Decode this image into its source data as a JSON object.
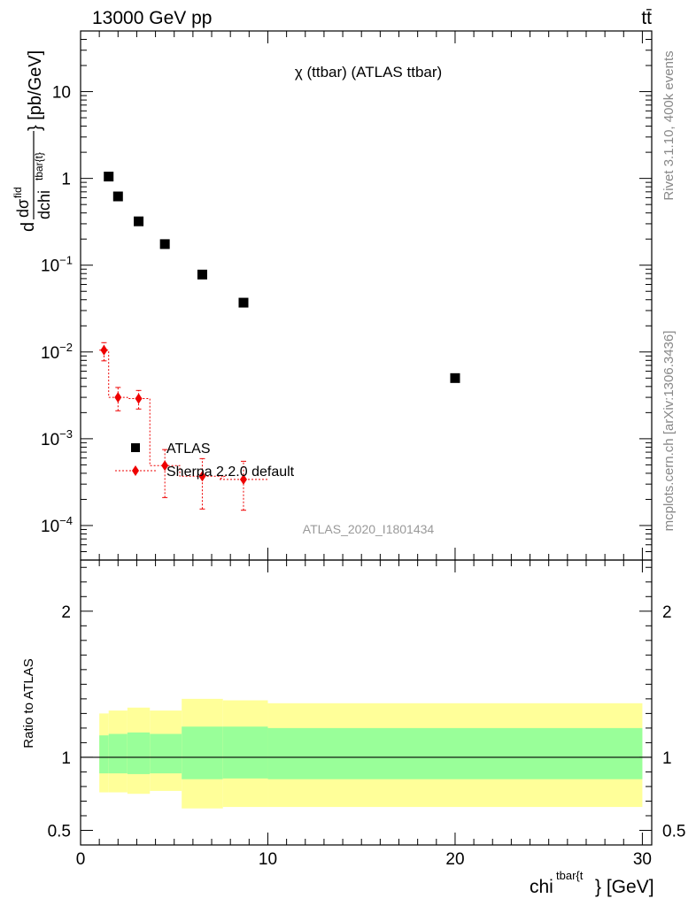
{
  "header": {
    "left": "13000 GeV pp",
    "right": "tt̄"
  },
  "side_labels": {
    "rivet": "Rivet 3.1.10,  400k events",
    "mcplots": "mcplots.cern.ch [arXiv:1306.3436]"
  },
  "colors": {
    "atlas": "#000000",
    "sherpa": "#ee0000",
    "band_inner": "#99ff99",
    "band_outer": "#ffff99"
  },
  "chart_data": {
    "type": "scatter",
    "title": "χ (ttbar) (ATLAS ttbar)",
    "watermark": "ATLAS_2020_I1801434",
    "xlabel": {
      "base": "chi",
      "sup": "tbar{t",
      "suffix": "} [GeV]"
    },
    "ylabel": {
      "d": "d",
      "num_base": "dσ",
      "num_sup": "fid",
      "den_base": "dchi",
      "den_sup": "tbar{t}",
      "suffix": "} [pb/GeV]"
    },
    "xlim": [
      0,
      30.5
    ],
    "ylim": [
      4e-05,
      50
    ],
    "yscale": "log",
    "x_ticks": [
      {
        "value": 0,
        "label": "0"
      },
      {
        "value": 10,
        "label": "10"
      },
      {
        "value": 20,
        "label": "20"
      },
      {
        "value": 30,
        "label": "30"
      }
    ],
    "y_ticks": [
      {
        "value": 10,
        "base": "10",
        "exp": ""
      },
      {
        "value": 1,
        "base": "1",
        "exp": ""
      },
      {
        "value": 0.1,
        "base": "10",
        "exp": "−1"
      },
      {
        "value": 0.01,
        "base": "10",
        "exp": "−2"
      },
      {
        "value": 0.001,
        "base": "10",
        "exp": "−3"
      },
      {
        "value": 0.0001,
        "base": "10",
        "exp": "−4"
      }
    ],
    "legend": {
      "position": "center-left",
      "entries": [
        {
          "label": "ATLAS"
        },
        {
          "label": "Sherpa 2.2.0 default"
        }
      ]
    },
    "series": [
      {
        "name": "ATLAS",
        "marker": "square",
        "x": [
          1.5,
          2.0,
          3.1,
          4.5,
          6.5,
          8.7,
          20.0
        ],
        "y": [
          1.05,
          0.62,
          0.32,
          0.175,
          0.078,
          0.037,
          0.005
        ]
      },
      {
        "name": "Sherpa 2.2.0 default",
        "marker": "diamond",
        "x": [
          1.25,
          2.0,
          3.1,
          4.5,
          6.5,
          8.7
        ],
        "y": [
          0.0105,
          0.003,
          0.0029,
          0.00049,
          0.00037,
          0.00034
        ],
        "xerr": [
          0.25,
          0.5,
          0.6,
          0.8,
          1.2,
          1.3
        ],
        "ylo": [
          0.0079,
          0.0021,
          0.0022,
          0.00021,
          0.000155,
          0.00015
        ],
        "yhi": [
          0.0128,
          0.0039,
          0.0036,
          0.00075,
          0.00059,
          0.00055
        ]
      }
    ],
    "ratio": {
      "ylabel": "Ratio to ATLAS",
      "ylim": [
        0.4,
        2.35
      ],
      "y_ticks": [
        {
          "value": 0.5,
          "label": "0.5"
        },
        {
          "value": 1,
          "label": "1"
        },
        {
          "value": 2,
          "label": "2"
        }
      ],
      "bands": [
        {
          "x0": 1.0,
          "x1": 1.5,
          "in_lo": 0.89,
          "in_hi": 1.15,
          "out_lo": 0.76,
          "out_hi": 1.3
        },
        {
          "x0": 1.5,
          "x1": 2.5,
          "in_lo": 0.89,
          "in_hi": 1.16,
          "out_lo": 0.76,
          "out_hi": 1.32
        },
        {
          "x0": 2.5,
          "x1": 3.7,
          "in_lo": 0.885,
          "in_hi": 1.17,
          "out_lo": 0.75,
          "out_hi": 1.34
        },
        {
          "x0": 3.7,
          "x1": 5.4,
          "in_lo": 0.89,
          "in_hi": 1.16,
          "out_lo": 0.77,
          "out_hi": 1.32
        },
        {
          "x0": 5.4,
          "x1": 7.6,
          "in_lo": 0.85,
          "in_hi": 1.21,
          "out_lo": 0.65,
          "out_hi": 1.4
        },
        {
          "x0": 7.6,
          "x1": 10.0,
          "in_lo": 0.855,
          "in_hi": 1.21,
          "out_lo": 0.66,
          "out_hi": 1.39
        },
        {
          "x0": 10.0,
          "x1": 30.0,
          "in_lo": 0.85,
          "in_hi": 1.2,
          "out_lo": 0.66,
          "out_hi": 1.37
        }
      ]
    }
  }
}
